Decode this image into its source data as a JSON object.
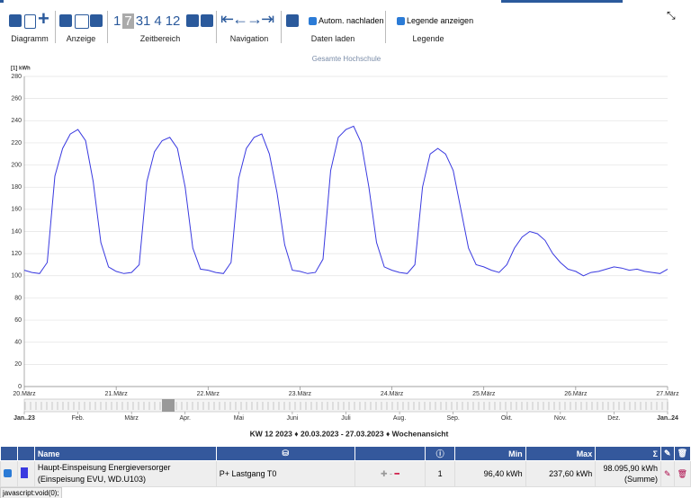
{
  "toolbar": {
    "groups": [
      "Diagramm",
      "Anzeige",
      "Zeitbereich",
      "Navigation",
      "Daten laden",
      "Legende"
    ],
    "ranges": [
      "1",
      "7",
      "31",
      "4",
      "12"
    ],
    "auto_reload": "Autom. nachladen",
    "show_legend": "Legende anzeigen"
  },
  "chart_data": {
    "type": "line",
    "title": "Gesamte Hochschule",
    "y_label": "[1] kWh",
    "x": [
      0,
      2,
      4,
      6,
      8,
      10,
      12,
      14,
      16,
      18,
      20,
      22,
      24,
      26,
      28,
      30,
      32,
      34,
      36,
      38,
      40,
      42,
      44,
      46,
      48,
      50,
      52,
      54,
      56,
      58,
      60,
      62,
      64,
      66,
      68,
      70,
      72,
      74,
      76,
      78,
      80,
      82,
      84,
      86,
      88,
      90,
      92,
      94,
      96,
      98,
      100,
      102,
      104,
      106,
      108,
      110,
      112,
      114,
      116,
      118,
      120,
      122,
      124,
      126,
      128,
      130,
      132,
      134,
      136,
      138,
      140,
      142,
      144,
      146,
      148,
      150,
      152,
      154,
      156,
      158,
      160,
      162,
      164,
      166,
      168
    ],
    "series": [
      {
        "name": "Haupt-Einspeisung Energieversorger",
        "color": "#3a3ae0",
        "values": [
          105,
          103,
          102,
          112,
          190,
          215,
          228,
          232,
          222,
          185,
          130,
          108,
          104,
          102,
          103,
          110,
          185,
          212,
          222,
          225,
          215,
          180,
          125,
          106,
          105,
          103,
          102,
          112,
          188,
          215,
          225,
          228,
          210,
          175,
          128,
          105,
          104,
          102,
          103,
          115,
          195,
          225,
          232,
          235,
          220,
          180,
          130,
          108,
          105,
          103,
          102,
          110,
          180,
          210,
          215,
          210,
          195,
          160,
          125,
          110,
          108,
          105,
          103,
          110,
          125,
          135,
          140,
          138,
          132,
          120,
          112,
          106,
          104,
          100,
          103,
          104,
          106,
          108,
          107,
          105,
          106,
          104,
          103,
          102,
          106
        ]
      }
    ],
    "xlim": [
      0,
      168
    ],
    "xticks": [
      {
        "value": 0,
        "label": "20.März"
      },
      {
        "value": 24,
        "label": "21.März"
      },
      {
        "value": 48,
        "label": "22.März"
      },
      {
        "value": 72,
        "label": "23.März"
      },
      {
        "value": 96,
        "label": "24.März"
      },
      {
        "value": 120,
        "label": "25.März"
      },
      {
        "value": 144,
        "label": "26.März"
      },
      {
        "value": 168,
        "label": "27.März"
      }
    ],
    "ylim": [
      0,
      280
    ],
    "yticks": [
      0,
      20,
      40,
      60,
      80,
      100,
      120,
      140,
      160,
      180,
      200,
      220,
      240,
      260,
      280
    ],
    "grid": true
  },
  "navigator": {
    "labels": [
      "Jan..23",
      "Feb.",
      "März",
      "Apr.",
      "Mai",
      "Juni",
      "Juli",
      "Aug.",
      "Sep.",
      "Okt.",
      "Nov.",
      "Dez.",
      "Jan..24"
    ]
  },
  "period": "KW 12 2023 ♦ 20.03.2023 - 27.03.2023 ♦ Wochenansicht",
  "table": {
    "header": [
      "Name",
      "Min",
      "Max",
      "Σ"
    ],
    "row": {
      "name": "Haupt-Einspeisung Energieversorger (Einspeisung EVU, WD.U103)",
      "type": "P+ Lastgang T0",
      "count": "1",
      "min": "96,40 kWh",
      "max": "237,60 kWh",
      "sum": "98.095,90 kWh",
      "sum_note": "(Summe)"
    }
  },
  "status": "javascript:void(0);"
}
